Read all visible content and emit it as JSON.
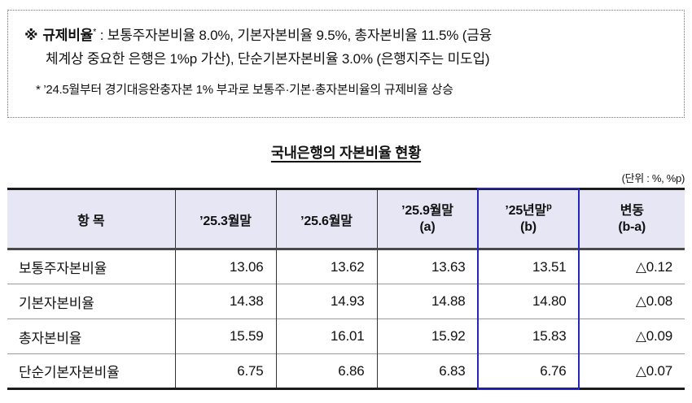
{
  "notice": {
    "marker": "※",
    "term": "규제비율",
    "term_sup": "*",
    "line1_rest": " : 보통주자본비율 8.0%,  기본자본비율 9.5%,  총자본비율 11.5% (금융",
    "line2": "체계상 중요한 은행은 1%p 가산), 단순기본자본비율 3.0% (은행지주는 미도입)",
    "footnote": "* ’24.5월부터 경기대응완충자본 1% 부과로 보통주·기본·총자본비율의 규제비율 상승"
  },
  "title": "국내은행의 자본비율 현황",
  "unit_label": "(단위 : %, %p)",
  "table": {
    "headers": {
      "item": "항 목",
      "col1": "’25.3월말",
      "col2": "’25.6월말",
      "col3_line1": "’25.9월말",
      "col3_line2": "(a)",
      "col4_line1": "’25년말",
      "col4_sup": "p",
      "col4_line2": "(b)",
      "col5_line1": "변동",
      "col5_line2": "(b-a)"
    },
    "rows": [
      {
        "label": "보통주자본비율",
        "v1": "13.06",
        "v2": "13.62",
        "v3": "13.63",
        "v4": "13.51",
        "change": "△0.12"
      },
      {
        "label": "기본자본비율",
        "v1": "14.38",
        "v2": "14.93",
        "v3": "14.88",
        "v4": "14.80",
        "change": "△0.08"
      },
      {
        "label": "총자본비율",
        "v1": "15.59",
        "v2": "16.01",
        "v3": "15.92",
        "v4": "15.83",
        "change": "△0.09"
      },
      {
        "label": "단순기본자본비율",
        "v1": "6.75",
        "v2": "6.86",
        "v3": "6.83",
        "v4": "6.76",
        "change": "△0.07"
      }
    ]
  },
  "colors": {
    "header_bg": "#e6e6f5",
    "highlight_border": "#2525bd",
    "table_border": "#1b1b1b"
  }
}
